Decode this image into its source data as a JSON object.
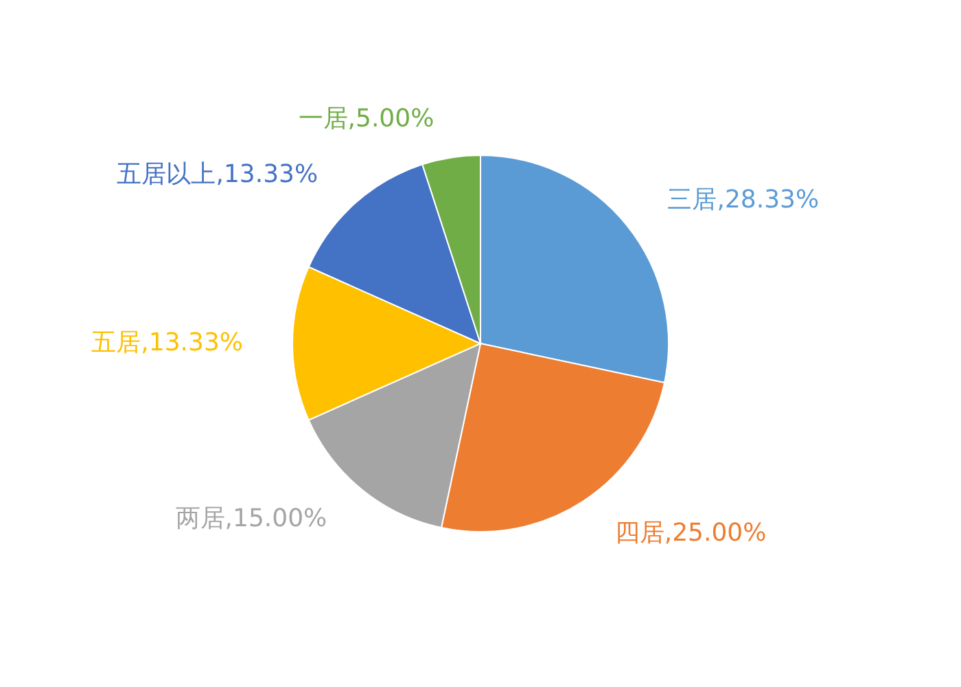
{
  "chart_data": {
    "type": "pie",
    "categories": [
      "三居",
      "四居",
      "两居",
      "五居",
      "五居以上",
      "一居"
    ],
    "values": [
      28.33,
      25.0,
      15.0,
      13.33,
      13.33,
      5.0
    ],
    "colors": [
      "#5b9bd5",
      "#ed7d31",
      "#a5a5a5",
      "#ffc000",
      "#4472c4",
      "#70ad47"
    ],
    "value_labels": [
      "28.33%",
      "25.00%",
      "15.00%",
      "13.33%",
      "13.33%",
      "5.00%"
    ]
  }
}
